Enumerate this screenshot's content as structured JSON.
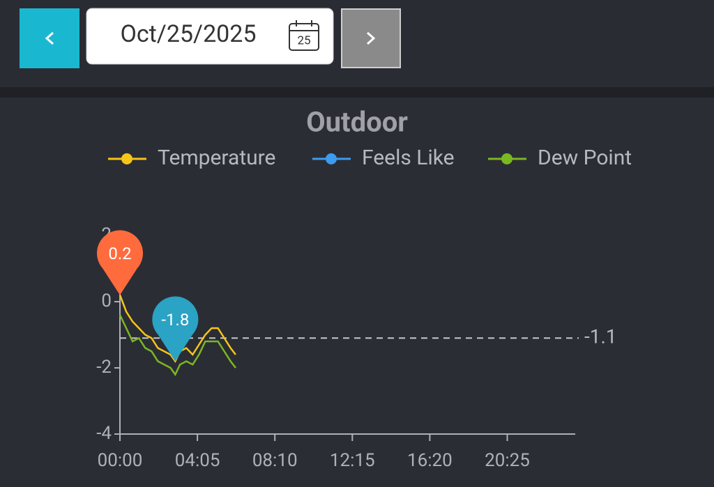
{
  "header": {
    "date": "Oct/25/2025",
    "calendar_day": "25"
  },
  "chart_data": {
    "type": "line",
    "title": "Outdoor",
    "x": [
      0,
      20,
      40,
      60,
      80,
      100,
      120,
      140,
      160,
      175,
      190,
      210,
      230,
      250,
      270,
      290,
      310,
      330,
      350,
      366
    ],
    "series": [
      {
        "name": "Temperature",
        "color": "#f5c518",
        "values": [
          0.2,
          -0.3,
          -0.6,
          -0.8,
          -1.0,
          -1.1,
          -1.4,
          -1.5,
          -1.6,
          -1.8,
          -1.5,
          -1.4,
          -1.6,
          -1.3,
          -1.0,
          -0.8,
          -0.8,
          -1.1,
          -1.4,
          -1.6
        ]
      },
      {
        "name": "Feels Like",
        "color": "#3d9bf0",
        "values": [
          null,
          null,
          null,
          null,
          null,
          null,
          null,
          null,
          null,
          null,
          null,
          null,
          null,
          null,
          null,
          null,
          null,
          null,
          null,
          null
        ]
      },
      {
        "name": "Dew Point",
        "color": "#7ab822",
        "values": [
          -0.4,
          -0.8,
          -1.2,
          -1.1,
          -1.4,
          -1.5,
          -1.8,
          -1.9,
          -2.0,
          -2.2,
          -1.9,
          -1.8,
          -1.9,
          -1.6,
          -1.2,
          -1.2,
          -1.2,
          -1.5,
          -1.8,
          -2.0
        ]
      }
    ],
    "markers": [
      {
        "x": 0,
        "value": 0.2,
        "color": "#ff6b3d"
      },
      {
        "x": 175,
        "value": -1.8,
        "color": "#2aa3c4"
      }
    ],
    "average": -1.1,
    "xlim": [
      0,
      1440
    ],
    "xticks": [
      {
        "value": 0,
        "label": "00:00"
      },
      {
        "value": 245,
        "label": "04:05"
      },
      {
        "value": 490,
        "label": "08:10"
      },
      {
        "value": 735,
        "label": "12:15"
      },
      {
        "value": 980,
        "label": "16:20"
      },
      {
        "value": 1225,
        "label": "20:25"
      }
    ],
    "ylim": [
      -4,
      2
    ],
    "yticks": [
      -4,
      -2,
      0,
      2
    ],
    "grid": false
  }
}
